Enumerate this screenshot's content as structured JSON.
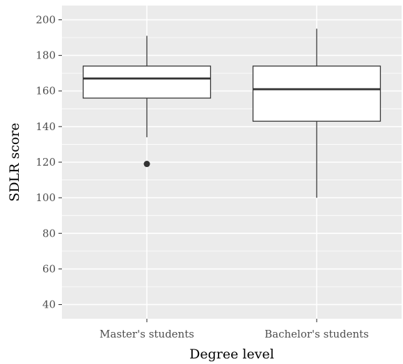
{
  "chart_data": {
    "type": "boxplot",
    "xlabel": "Degree level",
    "ylabel": "SDLR score",
    "ylim": [
      32,
      208
    ],
    "yticks": [
      40,
      60,
      80,
      100,
      120,
      140,
      160,
      180,
      200
    ],
    "grid": true,
    "legend": "none",
    "categories": [
      "Master's students",
      "Bachelor's students"
    ],
    "boxes": [
      {
        "category": "Master's students",
        "min": 134,
        "q1": 156,
        "median": 167,
        "q3": 174,
        "max": 191,
        "outliers": [
          119
        ]
      },
      {
        "category": "Bachelor's students",
        "min": 100,
        "q1": 143,
        "median": 161,
        "q3": 174,
        "max": 195,
        "outliers": []
      }
    ],
    "colors": {
      "panel": "#ebebeb",
      "grid": "#ffffff",
      "box_fill": "#ffffff",
      "box_stroke": "#333333",
      "tick_text": "#4d4d4d"
    }
  }
}
